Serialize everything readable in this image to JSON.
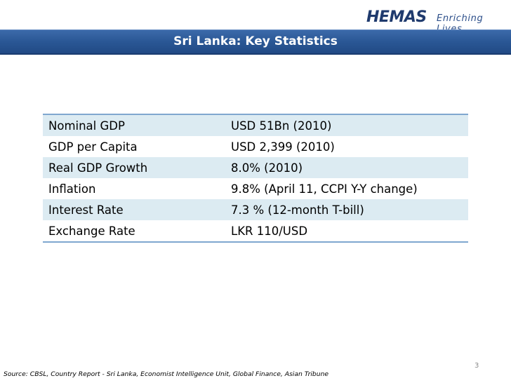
{
  "logo": {
    "brand": "HEMAS",
    "tagline": "Enriching Lives"
  },
  "title": "Sri Lanka: Key Statistics",
  "stats": [
    {
      "label": "Nominal GDP",
      "value": "USD 51Bn (2010)"
    },
    {
      "label": "GDP per Capita",
      "value": "USD 2,399 (2010)"
    },
    {
      "label": "Real GDP Growth",
      "value": "8.0% (2010)"
    },
    {
      "label": "Inflation",
      "value": "9.8% (April 11, CCPI Y-Y change)"
    },
    {
      "label": "Interest Rate",
      "value": "7.3 % (12-month T-bill)"
    },
    {
      "label": "Exchange Rate",
      "value": "LKR 110/USD"
    }
  ],
  "page_number": "3",
  "source": "Source: CBSL, Country Report - Sri Lanka, Economist Intelligence Unit, Global Finance, Asian Tribune",
  "colors": {
    "title_bar": "#2a5795",
    "row_shade": "#dcebf2",
    "table_rule": "#7fa7cf",
    "logo": "#1f3a6d"
  }
}
